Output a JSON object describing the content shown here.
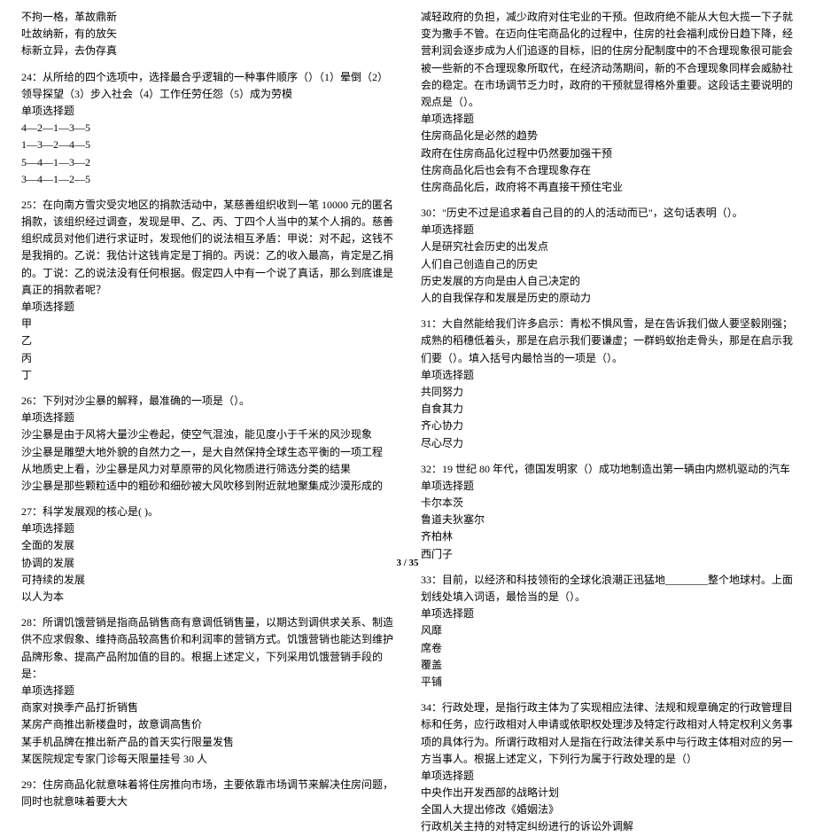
{
  "left": {
    "intro_lines": [
      "不拘一格，革故鼎新",
      "吐故纳新，有的放矢",
      "标新立异，去伪存真"
    ],
    "q24": {
      "stem": "24：从所给的四个选项中，选择最合乎逻辑的一种事件顺序（）（1）晕倒（2）领导探望（3）步入社会（4）工作任劳任怨（5）成为劳模",
      "type": "单项选择题",
      "opts": [
        "4—2—1—3—5",
        "1—3—2—4—5",
        "5—4—1—3—2",
        "3—4—1—2—5"
      ]
    },
    "q25": {
      "stem": "25：在向南方雪灾受灾地区的捐款活动中，某慈善组织收到一笔 10000 元的匿名捐款，该组织经过调查，发现是甲、乙、丙、丁四个人当中的某个人捐的。慈善组织成员对他们进行求证时，发现他们的说法相互矛盾：甲说：对不起，这钱不是我捐的。乙说：我估计这钱肯定是丁捐的。丙说：乙的收入最高，肯定是乙捐的。丁说：乙的说法没有任何根据。假定四人中有一个说了真话，那么到底谁是真正的捐款者呢？",
      "type": "单项选择题",
      "opts": [
        "甲",
        "乙",
        "丙",
        "丁"
      ]
    },
    "q26": {
      "stem": "26：下列对沙尘暴的解释，最准确的一项是（）。",
      "type": "单项选择题",
      "opts": [
        "沙尘暴是由于风将大量沙尘卷起，使空气混浊，能见度小于千米的风沙现象",
        "沙尘暴是雕塑大地外貌的自然力之一，是大自然保持全球生态平衡的一项工程",
        "从地质史上看，沙尘暴是风力对草原带的风化物质进行筛选分类的结果",
        "沙尘暴是那些颗粒适中的粗砂和细砂被大风吹移到附近就地聚集成沙漠形成的"
      ]
    },
    "q27": {
      "stem": "27：科学发展观的核心是( )。",
      "type": "单项选择题",
      "opts": [
        "全面的发展",
        "协调的发展",
        "可持续的发展",
        "以人为本"
      ]
    },
    "q28": {
      "stem": "28：所谓饥饿营销是指商品销售商有意调低销售量，以期达到调供求关系、制造供不应求假象、维持商品较高售价和利润率的营销方式。饥饿营销也能达到维护品牌形象、提高产品附加值的目的。根据上述定义，下列采用饥饿营销手段的是：",
      "type": "单项选择题",
      "opts": [
        "商家对换季产品打折销售",
        "某房产商推出新楼盘时，故意调高售价",
        "某手机品牌在推出新产品的首天实行限量发售",
        "某医院规定专家门诊每天限量挂号 30 人"
      ]
    },
    "q29": {
      "stem": "29：住房商品化就意味着将住房推向市场，主要依靠市场调节来解决住房问题，同时也就意味着要大大"
    }
  },
  "right": {
    "q29_cont": {
      "stem": "减轻政府的负担，减少政府对住宅业的干预。但政府绝不能从大包大揽一下子就变为撒手不管。在迈向住宅商品化的过程中，住房的社会福利成份日趋下降，经营利润会逐步成为人们追逐的目标，旧的住房分配制度中的不合理现象很可能会被一些新的不合理现象所取代，在经济动荡期间，新的不合理现象同样会威胁社会的稳定。在市场调节乏力时，政府的干预就显得格外重要。这段话主要说明的观点是（）。",
      "type": "单项选择题",
      "opts": [
        "住房商品化是必然的趋势",
        "政府在住房商品化过程中仍然要加强干预",
        "住房商品化后也会有不合理现象存在",
        "住房商品化后，政府将不再直接干预住宅业"
      ]
    },
    "q30": {
      "stem": "30：\"历史不过是追求着自己目的的人的活动而已\"，这句话表明（）。",
      "type": "单项选择题",
      "opts": [
        "人是研究社会历史的出发点",
        "人们自己创造自己的历史",
        "历史发展的方向是由人自己决定的",
        "人的自我保存和发展是历史的原动力"
      ]
    },
    "q31": {
      "stem": "31：大自然能给我们许多启示：青松不惧风雪，是在告诉我们做人要坚毅刚强；成熟的稻穗低着头，那是在启示我们要谦虚；一群蚂蚁抬走骨头，那是在启示我们要（）。填入括号内最恰当的一项是（）。",
      "type": "单项选择题",
      "opts": [
        "共同努力",
        "自食其力",
        "齐心协力",
        "尽心尽力"
      ]
    },
    "q32": {
      "stem": "32：19 世纪 80 年代，德国发明家（）成功地制造出第一辆由内燃机驱动的汽车",
      "type": "单项选择题",
      "opts": [
        "卡尔本茨",
        "鲁道夫狄塞尔",
        "齐柏林",
        "西门子"
      ]
    },
    "q33": {
      "stem": "33：目前，以经济和科技领衔的全球化浪潮正迅猛地________整个地球村。上面划线处填入词语，最恰当的是（）。",
      "type": "单项选择题",
      "opts": [
        "风靡",
        "席卷",
        "覆盖",
        "平铺"
      ]
    },
    "q34": {
      "stem": "34：行政处理，是指行政主体为了实现相应法律、法规和规章确定的行政管理目标和任务，应行政相对人申请或依职权处理涉及特定行政相对人特定权利义务事项的具体行为。所谓行政相对人是指在行政法律关系中与行政主体相对应的另一方当事人。根据上述定义，下列行为属于行政处理的是（）",
      "type": "单项选择题",
      "opts": [
        "中央作出开发西部的战略计划",
        "全国人大提出修改《婚姻法》",
        "行政机关主持的对特定纠纷进行的诉讼外调解"
      ]
    }
  },
  "page": "3 / 35"
}
